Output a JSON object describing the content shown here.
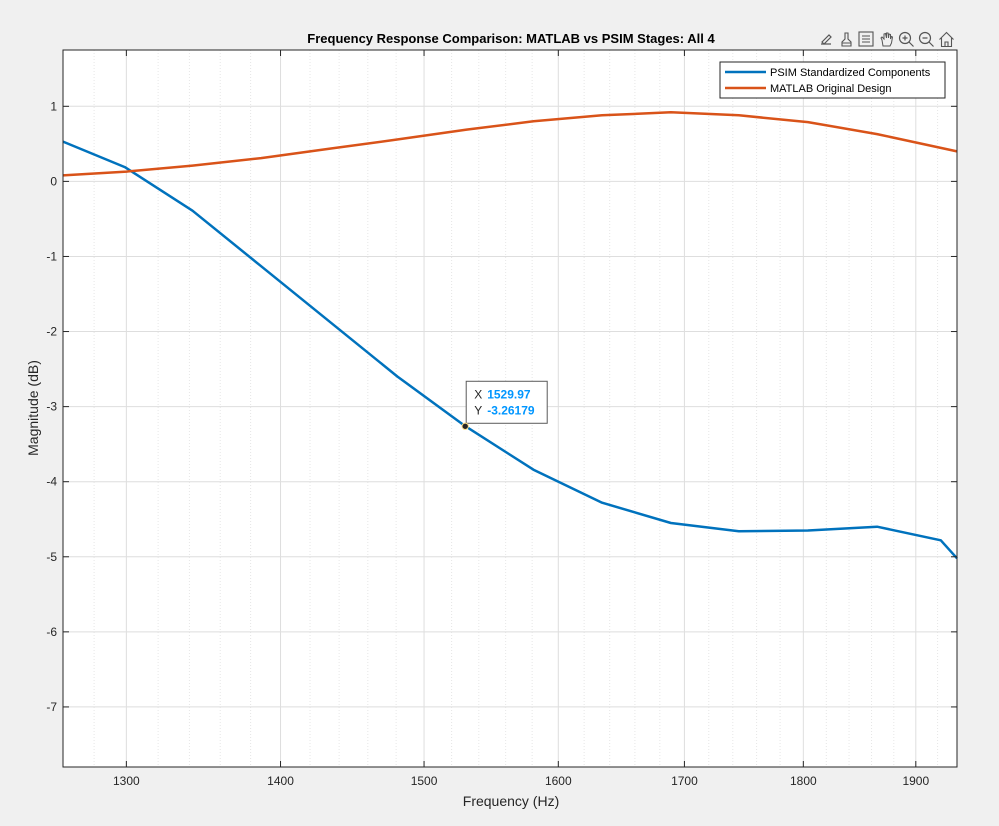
{
  "toolbar": {
    "icons": [
      "export-icon",
      "brush-icon",
      "data-tips-icon",
      "pan-icon",
      "zoom-in-icon",
      "zoom-out-icon",
      "home-icon"
    ]
  },
  "colors": {
    "figure_background": "#f0f0f0",
    "axes_background": "#ffffff",
    "grid": "#dedede",
    "psim": "#0072bd",
    "matlab": "#d95319",
    "datatip_value": "#0096ff"
  },
  "chart_data": {
    "type": "line",
    "title": "Frequency Response Comparison: MATLAB vs PSIM Stages: All 4",
    "xlabel": "Frequency (Hz)",
    "ylabel": "Magnitude (dB)",
    "xlim": [
      1261,
      1938
    ],
    "ylim": [
      -7.8,
      1.75
    ],
    "xscale": "log",
    "grid": true,
    "minor_grid": true,
    "xticks": [
      1300,
      1400,
      1500,
      1600,
      1700,
      1800,
      1900
    ],
    "xtick_labels": [
      "1300",
      "1400",
      "1500",
      "1600",
      "1700",
      "1800",
      "1900"
    ],
    "yticks": [
      1,
      0,
      -1,
      -2,
      -3,
      -4,
      -5,
      -6,
      -7
    ],
    "ytick_labels": [
      "1",
      "0",
      "-1",
      "-2",
      "-3",
      "-4",
      "-5",
      "-6",
      "-7"
    ],
    "legend": {
      "position": "top-right"
    },
    "series": [
      {
        "name": "PSIM Standardized Components",
        "color": "#0072bd",
        "x": [
          1261,
          1299,
          1342,
          1387,
          1481,
          1530,
          1581,
          1634,
          1689,
          1745,
          1804,
          1865,
          1923,
          1938
        ],
        "y": [
          0.53,
          0.19,
          -0.39,
          -1.13,
          -2.6,
          -3.26,
          -3.84,
          -4.28,
          -4.55,
          -4.66,
          -4.65,
          -4.6,
          -4.78,
          -5.02
        ]
      },
      {
        "name": "MATLAB Original Design",
        "color": "#d95319",
        "x": [
          1261,
          1300,
          1342,
          1387,
          1435,
          1482,
          1531,
          1581,
          1634,
          1689,
          1745,
          1804,
          1865,
          1938
        ],
        "y": [
          0.08,
          0.13,
          0.21,
          0.31,
          0.44,
          0.56,
          0.69,
          0.8,
          0.88,
          0.92,
          0.88,
          0.79,
          0.63,
          0.4
        ]
      }
    ],
    "datatip": {
      "x": 1529.97,
      "y": -3.26179,
      "x_label": "X",
      "y_label": "Y",
      "x_text": "1529.97",
      "y_text": "-3.26179"
    }
  }
}
